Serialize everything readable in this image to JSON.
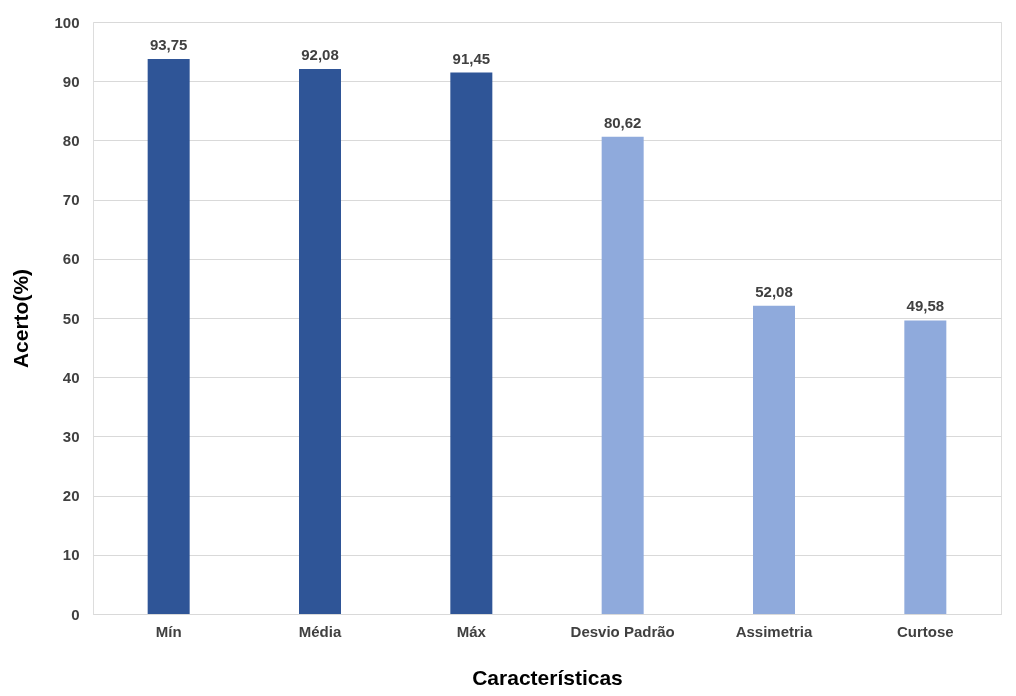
{
  "chart_data": {
    "type": "bar",
    "xlabel": "Características",
    "ylabel": "Acerto(%)",
    "categories": [
      "Mín",
      "Média",
      "Máx",
      "Desvio Padrão",
      "Assimetria",
      "Curtose"
    ],
    "values": [
      93.75,
      92.08,
      91.45,
      80.62,
      52.08,
      49.58
    ],
    "colors": [
      "#2f5597",
      "#2f5597",
      "#2f5597",
      "#8faadc",
      "#8faadc",
      "#8faadc"
    ],
    "value_labels": [
      "93,75",
      "92,08",
      "91,45",
      "80,62",
      "52,08",
      "49,58"
    ],
    "ylim": [
      0,
      100
    ],
    "yticks": [
      0,
      10,
      20,
      30,
      40,
      50,
      60,
      70,
      80,
      90,
      100
    ],
    "grid": "y",
    "legend": false
  }
}
